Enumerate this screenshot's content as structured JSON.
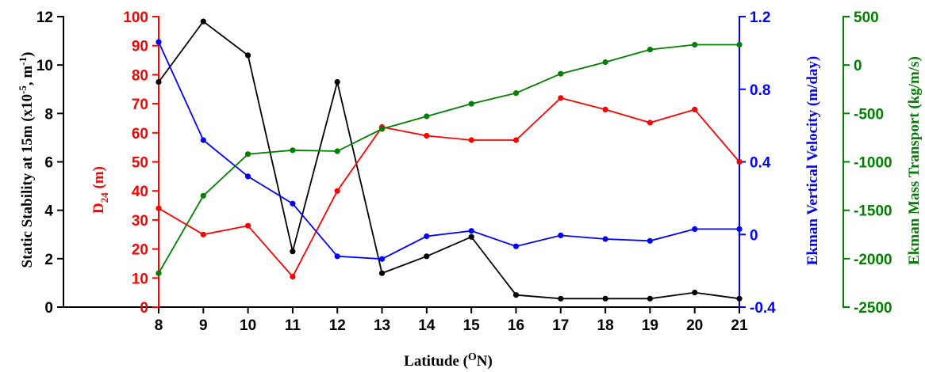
{
  "chart_data": {
    "type": "line",
    "xlabel": "Latitude (",
    "xlabel_sup": "O",
    "xlabel_end": "N)",
    "x": [
      8,
      9,
      10,
      11,
      12,
      13,
      14,
      15,
      16,
      17,
      18,
      19,
      20,
      21
    ],
    "xlim": [
      8,
      21
    ],
    "axes": [
      {
        "id": "stability",
        "side": "left-outer",
        "color": "#000000",
        "label_pre": "Static Stability at 15m  (x10",
        "label_sup1": "-5",
        "label_mid": ", m",
        "label_sup2": "-1",
        "label_post": ")",
        "ylim": [
          0,
          12
        ],
        "ticks": [
          0,
          2,
          4,
          6,
          8,
          10,
          12
        ],
        "tick_labels": [
          "0",
          "2",
          "4",
          "6",
          "8",
          "10",
          "12"
        ]
      },
      {
        "id": "d24",
        "side": "left-inner",
        "color": "#ff0000",
        "label_main": "D",
        "label_sub": "24",
        "label_post": " (m)",
        "ylim": [
          0,
          100
        ],
        "ticks": [
          0,
          10,
          20,
          30,
          40,
          50,
          60,
          70,
          80,
          90,
          100
        ],
        "tick_labels": [
          "0",
          "10",
          "20",
          "30",
          "40",
          "50",
          "60",
          "70",
          "80",
          "90",
          "100"
        ]
      },
      {
        "id": "ekman_velocity",
        "side": "right-inner",
        "color": "#0000ff",
        "label": "Ekman Vertical Velocity (m/day)",
        "ylim": [
          -0.4,
          1.2
        ],
        "ticks": [
          -0.4,
          0,
          0.4,
          0.8,
          1.2
        ],
        "tick_labels": [
          "-0.4",
          "0",
          "0.4",
          "0.8",
          "1.2"
        ]
      },
      {
        "id": "ekman_transport",
        "side": "right-outer",
        "color": "#008000",
        "label": "Ekman Mass Transport (kg/m/s)",
        "ylim": [
          -2500,
          500
        ],
        "ticks": [
          -2500,
          -2000,
          -1500,
          -1000,
          -500,
          0,
          500
        ],
        "tick_labels": [
          "-2500",
          "-2000",
          "-1500",
          "-1000",
          "-500",
          "0",
          "500"
        ]
      }
    ],
    "series": [
      {
        "axis": "stability",
        "color": "#000000",
        "values": [
          9.3,
          11.8,
          10.4,
          2.3,
          9.3,
          1.4,
          2.1,
          2.9,
          0.5,
          0.35,
          0.35,
          0.35,
          0.6,
          0.35
        ]
      },
      {
        "axis": "d24",
        "color": "#ff0000",
        "values": [
          34,
          25,
          28,
          10.5,
          40,
          62,
          59,
          57.5,
          57.5,
          72,
          68,
          63.5,
          68,
          50
        ]
      },
      {
        "axis": "ekman_velocity",
        "color": "#0000ff",
        "values": [
          1.06,
          0.52,
          0.32,
          0.17,
          -0.12,
          -0.135,
          -0.01,
          0.02,
          -0.065,
          -0.005,
          -0.025,
          -0.035,
          0.03,
          0.03
        ]
      },
      {
        "axis": "ekman_transport",
        "color": "#008000",
        "values": [
          -2150,
          -1350,
          -920,
          -880,
          -890,
          -660,
          -530,
          -400,
          -290,
          -90,
          30,
          160,
          210,
          210
        ]
      }
    ]
  }
}
